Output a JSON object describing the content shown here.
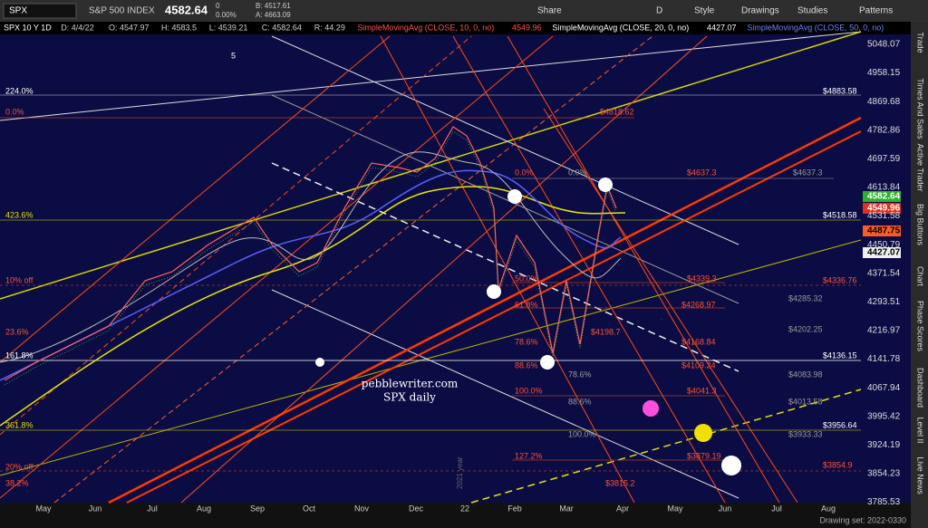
{
  "toolbar": {
    "symbol": "SPX",
    "name": "S&P 500 INDEX",
    "price": "4582.64",
    "change": "0",
    "percent": "0.00%",
    "bid": "B: 4517.61",
    "ask": "A: 4663.09",
    "buttons": [
      "Share",
      "D",
      "Style",
      "Drawings",
      "Studies",
      "Patterns"
    ]
  },
  "legend": {
    "items": [
      "SPX 10 Y 1D",
      "D: 4/4/22",
      "O: 4547.97",
      "H: 4583.5",
      "L: 4539.21",
      "C: 4582.64",
      "R: 44.29"
    ],
    "studies": [
      {
        "name": "SimpleMovingAvg (CLOSE, 10, 0, no)",
        "value": "4549.96"
      },
      {
        "name": "SimpleMovingAvg (CLOSE, 20, 0, no)",
        "value": "4427.07"
      },
      {
        "name": "SimpleMovingAvg (CLOSE, 50, 0, no)"
      }
    ]
  },
  "price_axis": [
    "5048.07",
    "4958.15",
    "4869.68",
    "4782.86",
    "4697.59",
    "4613.84",
    "4531.58",
    "4450.79",
    "4371.54",
    "4293.51",
    "4216.97",
    "4141.78",
    "4067.94",
    "3995.42",
    "3924.19",
    "3854.23",
    "3785.53"
  ],
  "price_tags": [
    "4582.64",
    "4549.96",
    "4487.75",
    "4427.07"
  ],
  "months": [
    "May",
    "Jun",
    "Jul",
    "Aug",
    "Sep",
    "Oct",
    "Nov",
    "Dec",
    "22",
    "Feb",
    "Mar",
    "Apr",
    "May",
    "Jun",
    "Jul",
    "Aug"
  ],
  "side_tabs": [
    "Trade",
    "Times And Sales",
    "Active Trader",
    "Big Buttons",
    "Chart",
    "Phase Scores",
    "Dashboard",
    "Level II",
    "Live News"
  ],
  "annotations": [
    "5",
    "224.0%",
    "0.0%",
    "423.6%",
    "10% off",
    "23.6%",
    "161.8%",
    "361.8%",
    "20% off",
    "38.2%",
    "$4883.58",
    "$4818.62",
    "0.0%",
    "0.0%",
    "$4637.3",
    "$4637.3",
    "$4518.58",
    "$4339.3",
    "$4336.76",
    "50.0%",
    "61.8%",
    "$4268.97",
    "$4285.32",
    "$4198.7",
    "$4202.25",
    "78.6%",
    "$4168.84",
    "$4136.15",
    "88.6%",
    "$4109.24",
    "78.6%",
    "$4083.98",
    "100.0%",
    "$4041.3",
    "88.6%",
    "$4013.58",
    "$3956.64",
    "100.0%",
    "$3933.33",
    "127.2%",
    "$3879.19",
    "$3854.9",
    "$3815.2"
  ],
  "watermark": [
    "pebblewriter.com",
    "SPX daily"
  ],
  "year_label": "2021 year",
  "status": "Drawing set: 2022-0330"
}
